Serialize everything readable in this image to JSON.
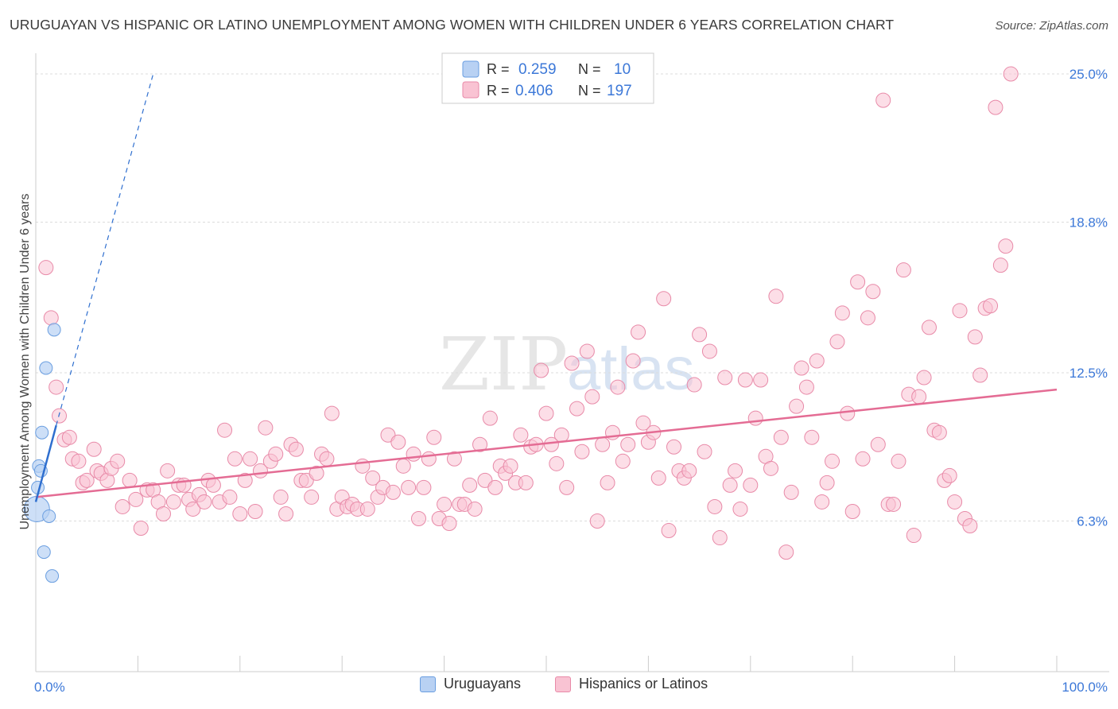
{
  "title": "URUGUAYAN VS HISPANIC OR LATINO UNEMPLOYMENT AMONG WOMEN WITH CHILDREN UNDER 6 YEARS CORRELATION CHART",
  "source": "Source: ZipAtlas.com",
  "watermark": {
    "zip": "ZIP",
    "atlas": "atlas"
  },
  "colors": {
    "uruguayan_fill": "#b8d1f3",
    "uruguayan_stroke": "#6a9ee0",
    "uruguayan_line": "#2f6fcf",
    "hispanic_fill": "#f9c3d3",
    "hispanic_stroke": "#e88aa8",
    "hispanic_line": "#e46c94",
    "value_text": "#3c78d8",
    "grid": "#dcdcdc"
  },
  "legend": {
    "rows": [
      {
        "r_label": "R =",
        "r_value": "0.259",
        "n_label": "N =",
        "n_value": "10"
      },
      {
        "r_label": "R =",
        "r_value": "0.406",
        "n_label": "N =",
        "n_value": "197"
      }
    ]
  },
  "bottom_legend": [
    "Uruguayans",
    "Hispanics or Latinos"
  ],
  "chart_data": {
    "type": "scatter",
    "ylabel": "Unemployment Among Women with Children Under 6 years",
    "xlabel": "",
    "xlim": [
      0,
      100
    ],
    "ylim": [
      0,
      25.5
    ],
    "x_tick_labels": [
      "0.0%",
      "100.0%"
    ],
    "y_ticks": [
      6.3,
      12.5,
      18.8,
      25.0
    ],
    "y_tick_labels": [
      "6.3%",
      "12.5%",
      "18.8%",
      "25.0%"
    ],
    "grid": true,
    "legend_position": "top-center",
    "series": [
      {
        "name": "Uruguayans",
        "points": [
          [
            0.1,
            6.8
          ],
          [
            0.2,
            7.7
          ],
          [
            0.3,
            8.6
          ],
          [
            0.5,
            8.4
          ],
          [
            0.6,
            10.0
          ],
          [
            0.8,
            5.0
          ],
          [
            1.0,
            12.7
          ],
          [
            1.3,
            6.5
          ],
          [
            1.6,
            4.0
          ],
          [
            1.8,
            14.3
          ]
        ],
        "trend": {
          "x0": 0,
          "y0": 7.1,
          "x1": 2.0,
          "y1": 10.3,
          "dashed_to": {
            "x": 11.5,
            "y": 25.0
          }
        }
      },
      {
        "name": "Hispanics or Latinos",
        "points": [
          [
            1.0,
            16.9
          ],
          [
            1.5,
            14.8
          ],
          [
            2.0,
            11.9
          ],
          [
            2.3,
            10.7
          ],
          [
            2.8,
            9.7
          ],
          [
            3.3,
            9.8
          ],
          [
            3.6,
            8.9
          ],
          [
            4.2,
            8.8
          ],
          [
            4.6,
            7.9
          ],
          [
            5.0,
            8.0
          ],
          [
            5.7,
            9.3
          ],
          [
            6.0,
            8.4
          ],
          [
            6.4,
            8.3
          ],
          [
            7.0,
            8.0
          ],
          [
            7.4,
            8.5
          ],
          [
            8.0,
            8.8
          ],
          [
            8.5,
            6.9
          ],
          [
            9.2,
            8.0
          ],
          [
            9.8,
            7.2
          ],
          [
            10.3,
            6.0
          ],
          [
            10.9,
            7.6
          ],
          [
            11.5,
            7.6
          ],
          [
            12.0,
            7.1
          ],
          [
            12.5,
            6.6
          ],
          [
            12.9,
            8.4
          ],
          [
            13.5,
            7.1
          ],
          [
            14.0,
            7.8
          ],
          [
            14.5,
            7.8
          ],
          [
            15.0,
            7.2
          ],
          [
            15.4,
            6.8
          ],
          [
            16.0,
            7.4
          ],
          [
            16.5,
            7.1
          ],
          [
            16.9,
            8.0
          ],
          [
            17.4,
            7.8
          ],
          [
            18.0,
            7.1
          ],
          [
            18.5,
            10.1
          ],
          [
            19.0,
            7.3
          ],
          [
            19.5,
            8.9
          ],
          [
            20.0,
            6.6
          ],
          [
            20.5,
            8.0
          ],
          [
            21.0,
            8.9
          ],
          [
            21.5,
            6.7
          ],
          [
            22.0,
            8.4
          ],
          [
            22.5,
            10.2
          ],
          [
            23.0,
            8.8
          ],
          [
            23.5,
            9.1
          ],
          [
            24.0,
            7.3
          ],
          [
            24.5,
            6.6
          ],
          [
            25.0,
            9.5
          ],
          [
            25.5,
            9.3
          ],
          [
            26.0,
            8.0
          ],
          [
            26.5,
            8.0
          ],
          [
            27.0,
            7.3
          ],
          [
            27.5,
            8.3
          ],
          [
            28.0,
            9.1
          ],
          [
            28.5,
            8.9
          ],
          [
            29.0,
            10.8
          ],
          [
            29.5,
            6.8
          ],
          [
            30.0,
            7.3
          ],
          [
            30.5,
            6.9
          ],
          [
            31.0,
            7.0
          ],
          [
            31.5,
            6.8
          ],
          [
            32.0,
            8.6
          ],
          [
            32.5,
            6.8
          ],
          [
            33.0,
            8.1
          ],
          [
            33.5,
            7.3
          ],
          [
            34.0,
            7.7
          ],
          [
            34.5,
            9.9
          ],
          [
            35.0,
            7.5
          ],
          [
            35.5,
            9.6
          ],
          [
            36.0,
            8.6
          ],
          [
            36.5,
            7.7
          ],
          [
            37.0,
            9.1
          ],
          [
            37.5,
            6.4
          ],
          [
            38.0,
            7.7
          ],
          [
            38.5,
            8.9
          ],
          [
            39.0,
            9.8
          ],
          [
            39.5,
            6.4
          ],
          [
            40.0,
            7.0
          ],
          [
            40.5,
            6.2
          ],
          [
            41.0,
            8.9
          ],
          [
            41.5,
            7.0
          ],
          [
            42.0,
            7.0
          ],
          [
            42.5,
            7.8
          ],
          [
            43.0,
            6.8
          ],
          [
            43.5,
            9.5
          ],
          [
            44.0,
            8.0
          ],
          [
            44.5,
            10.6
          ],
          [
            45.0,
            7.7
          ],
          [
            45.5,
            8.6
          ],
          [
            46.0,
            8.3
          ],
          [
            46.5,
            8.6
          ],
          [
            47.0,
            7.9
          ],
          [
            47.5,
            9.9
          ],
          [
            48.0,
            7.9
          ],
          [
            48.5,
            9.4
          ],
          [
            49.0,
            9.5
          ],
          [
            49.5,
            12.6
          ],
          [
            50.0,
            10.8
          ],
          [
            50.5,
            9.5
          ],
          [
            51.0,
            8.7
          ],
          [
            51.5,
            9.9
          ],
          [
            52.0,
            7.7
          ],
          [
            52.5,
            12.9
          ],
          [
            53.0,
            11.0
          ],
          [
            53.5,
            9.2
          ],
          [
            54.0,
            13.4
          ],
          [
            54.5,
            11.5
          ],
          [
            55.0,
            6.3
          ],
          [
            55.5,
            9.5
          ],
          [
            56.0,
            7.9
          ],
          [
            56.5,
            10.0
          ],
          [
            57.0,
            11.9
          ],
          [
            57.5,
            8.8
          ],
          [
            58.0,
            9.5
          ],
          [
            58.5,
            13.0
          ],
          [
            59.0,
            14.2
          ],
          [
            59.5,
            10.4
          ],
          [
            60.0,
            9.6
          ],
          [
            60.5,
            10.0
          ],
          [
            61.0,
            8.1
          ],
          [
            61.5,
            15.6
          ],
          [
            62.0,
            5.9
          ],
          [
            62.5,
            9.4
          ],
          [
            63.0,
            8.4
          ],
          [
            63.5,
            8.1
          ],
          [
            64.0,
            8.4
          ],
          [
            64.5,
            12.0
          ],
          [
            65.0,
            14.1
          ],
          [
            65.5,
            9.2
          ],
          [
            66.0,
            13.4
          ],
          [
            66.5,
            6.9
          ],
          [
            67.0,
            5.6
          ],
          [
            67.5,
            12.3
          ],
          [
            68.0,
            7.8
          ],
          [
            68.5,
            8.4
          ],
          [
            69.0,
            6.8
          ],
          [
            69.5,
            12.2
          ],
          [
            70.0,
            7.8
          ],
          [
            70.5,
            10.6
          ],
          [
            71.0,
            12.2
          ],
          [
            71.5,
            9.0
          ],
          [
            72.0,
            8.5
          ],
          [
            72.5,
            15.7
          ],
          [
            73.0,
            9.8
          ],
          [
            73.5,
            5.0
          ],
          [
            74.0,
            7.5
          ],
          [
            74.5,
            11.1
          ],
          [
            75.0,
            12.7
          ],
          [
            75.5,
            11.9
          ],
          [
            76.0,
            9.8
          ],
          [
            76.5,
            13.0
          ],
          [
            77.0,
            7.1
          ],
          [
            77.5,
            7.9
          ],
          [
            78.0,
            8.8
          ],
          [
            78.5,
            13.8
          ],
          [
            79.0,
            15.0
          ],
          [
            79.5,
            10.8
          ],
          [
            80.0,
            6.7
          ],
          [
            80.5,
            16.3
          ],
          [
            81.0,
            8.9
          ],
          [
            81.5,
            14.8
          ],
          [
            82.0,
            15.9
          ],
          [
            82.5,
            9.5
          ],
          [
            83.0,
            23.9
          ],
          [
            83.5,
            7.0
          ],
          [
            84.0,
            7.0
          ],
          [
            84.5,
            8.8
          ],
          [
            85.0,
            16.8
          ],
          [
            85.5,
            11.6
          ],
          [
            86.0,
            5.7
          ],
          [
            86.5,
            11.5
          ],
          [
            87.0,
            12.3
          ],
          [
            87.5,
            14.4
          ],
          [
            88.0,
            10.1
          ],
          [
            88.5,
            10.0
          ],
          [
            89.0,
            8.0
          ],
          [
            89.5,
            8.2
          ],
          [
            90.0,
            7.1
          ],
          [
            90.5,
            15.1
          ],
          [
            91.0,
            6.4
          ],
          [
            91.5,
            6.1
          ],
          [
            92.0,
            14.0
          ],
          [
            92.5,
            12.4
          ],
          [
            93.0,
            15.2
          ],
          [
            93.5,
            15.3
          ],
          [
            94.0,
            23.6
          ],
          [
            94.5,
            17.0
          ],
          [
            95.0,
            17.8
          ],
          [
            95.5,
            25.0
          ]
        ],
        "trend": {
          "x0": 0,
          "y0": 7.3,
          "x1": 100,
          "y1": 11.8
        }
      }
    ]
  }
}
